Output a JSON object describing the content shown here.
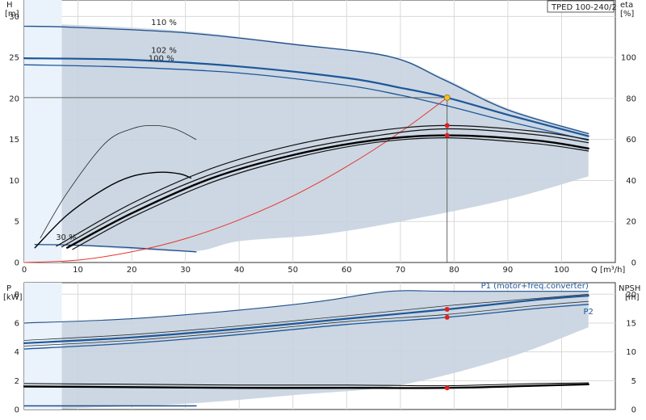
{
  "chart_data": [
    {
      "type": "line",
      "title": "TPED 100-240/2",
      "ylabel_left": "H",
      "ylabel_left_unit": "[m]",
      "ylabel_right": "eta",
      "ylabel_right_unit": "[%]",
      "xlabel": "Q [m³/h]",
      "xlim": [
        0,
        110
      ],
      "ylim_left": [
        0,
        32
      ],
      "ylim_right": [
        0,
        128
      ],
      "xticks": [
        0,
        10,
        20,
        30,
        40,
        50,
        60,
        70,
        80,
        90,
        100
      ],
      "yticks_left": [
        0,
        5,
        10,
        15,
        20,
        25,
        30
      ],
      "yticks_right": [
        0,
        20,
        40,
        60,
        80,
        100
      ],
      "grid": true,
      "curve_labels": [
        {
          "text": "110 %",
          "x": 26,
          "y": 29.3
        },
        {
          "text": "102 %",
          "x": 26,
          "y": 25.9
        },
        {
          "text": "100 %",
          "x": 25.5,
          "y": 24.9
        },
        {
          "text": "30 %",
          "x": 7.8,
          "y": 3.1
        }
      ],
      "duty_point": {
        "x": 78.7,
        "y": 20.1,
        "color": "#f2c032"
      },
      "duty_markers": [
        {
          "x": 78.7,
          "y": 16.7
        },
        {
          "x": 78.7,
          "y": 15.5
        }
      ],
      "envelope": {
        "top": [
          [
            2,
            29
          ],
          [
            8,
            29
          ],
          [
            30,
            28.2
          ],
          [
            50,
            26.7
          ],
          [
            68,
            25.2
          ],
          [
            78,
            22.5
          ],
          [
            90,
            18.8
          ],
          [
            105,
            15.8
          ]
        ],
        "bottom": [
          [
            105,
            10.5
          ],
          [
            90,
            7.7
          ],
          [
            70,
            5.0
          ],
          [
            55,
            3.4
          ],
          [
            40,
            2.6
          ],
          [
            32,
            1.4
          ],
          [
            20,
            1.6
          ],
          [
            8,
            2.2
          ],
          [
            2,
            2.2
          ]
        ]
      },
      "series": [
        {
          "role": "head_max",
          "values": [
            [
              0,
              28.8
            ],
            [
              8,
              28.7
            ],
            [
              30,
              28.0
            ],
            [
              50,
              26.6
            ],
            [
              68,
              25.1
            ],
            [
              78,
              22.3
            ],
            [
              90,
              18.6
            ],
            [
              105,
              15.7
            ]
          ],
          "color": "#1f4f8a",
          "width": 1.3
        },
        {
          "role": "head_102",
          "values": [
            [
              0,
              24.9
            ],
            [
              20,
              24.7
            ],
            [
              40,
              23.9
            ],
            [
              60,
              22.5
            ],
            [
              70,
              21.3
            ],
            [
              78.7,
              20.1
            ],
            [
              90,
              18.0
            ],
            [
              105,
              15.4
            ]
          ],
          "color": "#1c5799",
          "width": 2.2
        },
        {
          "role": "head_100",
          "values": [
            [
              0,
              24.1
            ],
            [
              20,
              23.8
            ],
            [
              40,
              23.1
            ],
            [
              60,
              21.6
            ],
            [
              70,
              20.4
            ],
            [
              78.7,
              19.1
            ],
            [
              90,
              17.2
            ],
            [
              105,
              14.9
            ]
          ],
          "color": "#1c5799",
          "width": 1.3
        },
        {
          "role": "head_min",
          "values": [
            [
              2,
              2.2
            ],
            [
              10,
              2.1
            ],
            [
              20,
              1.8
            ],
            [
              32,
              1.3
            ]
          ],
          "color": "#1f4f8a",
          "width": 1.3
        },
        {
          "role": "system_curve",
          "values": [
            [
              0,
              0
            ],
            [
              10,
              0.3
            ],
            [
              20,
              1.3
            ],
            [
              30,
              2.9
            ],
            [
              40,
              5.2
            ],
            [
              50,
              8.1
            ],
            [
              60,
              11.7
            ],
            [
              70,
              15.9
            ],
            [
              78.7,
              20.1
            ]
          ],
          "color": "#e8352d",
          "width": 1.0
        },
        {
          "role": "eta_1",
          "values": [
            [
              3,
              3
            ],
            [
              8,
              8.5
            ],
            [
              15,
              14.5
            ],
            [
              20,
              16.3
            ],
            [
              24,
              16.7
            ],
            [
              28,
              16.3
            ],
            [
              32,
              15
            ]
          ],
          "color": "#222222",
          "width": 0.8
        },
        {
          "role": "eta_2",
          "values": [
            [
              2,
              1.8
            ],
            [
              8,
              5.8
            ],
            [
              15,
              9.0
            ],
            [
              20,
              10.5
            ],
            [
              25,
              11
            ],
            [
              29,
              10.8
            ],
            [
              31,
              10.3
            ]
          ],
          "color": "#000000",
          "width": 1.4
        },
        {
          "role": "eta_3",
          "values": [
            [
              6,
              2.0
            ],
            [
              20,
              7.2
            ],
            [
              35,
              11.5
            ],
            [
              50,
              14.3
            ],
            [
              65,
              16.0
            ],
            [
              78.7,
              16.7
            ],
            [
              95,
              16.0
            ],
            [
              105,
              15.0
            ]
          ],
          "color": "#111111",
          "width": 1.2
        },
        {
          "role": "eta_4",
          "values": [
            [
              7,
              1.9
            ],
            [
              20,
              6.6
            ],
            [
              35,
              10.8
            ],
            [
              50,
              13.6
            ],
            [
              65,
              15.4
            ],
            [
              78.7,
              16.3
            ],
            [
              95,
              15.6
            ],
            [
              105,
              14.6
            ]
          ],
          "color": "#111111",
          "width": 1.2
        },
        {
          "role": "eta_5",
          "values": [
            [
              8,
              1.8
            ],
            [
              20,
              6.0
            ],
            [
              35,
              10.3
            ],
            [
              50,
              13.1
            ],
            [
              65,
              14.9
            ],
            [
              78.7,
              15.5
            ],
            [
              95,
              14.9
            ],
            [
              105,
              13.9
            ]
          ],
          "color": "#000000",
          "width": 2.4
        },
        {
          "role": "eta_6",
          "values": [
            [
              9,
              1.6
            ],
            [
              20,
              5.5
            ],
            [
              35,
              9.8
            ],
            [
              50,
              12.7
            ],
            [
              65,
              14.6
            ],
            [
              78.7,
              15.2
            ],
            [
              95,
              14.5
            ],
            [
              105,
              13.6
            ]
          ],
          "color": "#111111",
          "width": 1.2
        }
      ]
    },
    {
      "type": "line",
      "ylabel_left": "P",
      "ylabel_left_unit": "[kW]",
      "ylabel_right": "NPSH",
      "ylabel_right_unit": "[m]",
      "xlim": [
        0,
        110
      ],
      "ylim_left": [
        0,
        8.8
      ],
      "ylim_right": [
        0,
        22
      ],
      "yticks_left": [
        0,
        2,
        4,
        6,
        8
      ],
      "yticks_right": [
        0,
        5,
        10,
        15,
        20
      ],
      "grid": true,
      "legend_entries": [
        {
          "text": "P1 (motor+freq.converter)",
          "color": "#1c5799",
          "x": 95,
          "y": 8.6
        },
        {
          "text": "P2",
          "color": "#1c5799",
          "x": 105,
          "y": 6.8
        }
      ],
      "duty_markers": [
        {
          "x": 78.7,
          "y": 6.95
        },
        {
          "x": 78.7,
          "y": 6.4
        },
        {
          "x": 78.7,
          "y": 1.5
        }
      ],
      "envelope": {
        "top": [
          [
            2,
            6.0
          ],
          [
            20,
            6.3
          ],
          [
            40,
            6.9
          ],
          [
            55,
            7.5
          ],
          [
            68,
            8.2
          ],
          [
            80,
            8.2
          ],
          [
            105,
            8.2
          ]
        ],
        "bottom": [
          [
            105,
            5.7
          ],
          [
            90,
            3.6
          ],
          [
            70,
            1.7
          ],
          [
            50,
            1.0
          ],
          [
            30,
            0.4
          ],
          [
            10,
            0.1
          ],
          [
            2,
            0.0
          ]
        ]
      },
      "series": [
        {
          "role": "P1_max",
          "values": [
            [
              0,
              6.0
            ],
            [
              20,
              6.3
            ],
            [
              40,
              6.9
            ],
            [
              55,
              7.5
            ],
            [
              68,
              8.2
            ],
            [
              80,
              8.2
            ],
            [
              105,
              8.2
            ]
          ],
          "color": "#1f4f8a",
          "width": 1.1
        },
        {
          "role": "P1",
          "values": [
            [
              0,
              4.6
            ],
            [
              20,
              5.0
            ],
            [
              40,
              5.6
            ],
            [
              60,
              6.3
            ],
            [
              78.7,
              6.95
            ],
            [
              95,
              7.6
            ],
            [
              105,
              7.9
            ]
          ],
          "color": "#1c5799",
          "width": 2.2
        },
        {
          "role": "P1_b",
          "values": [
            [
              0,
              4.8
            ],
            [
              20,
              5.2
            ],
            [
              40,
              5.8
            ],
            [
              60,
              6.5
            ],
            [
              78.7,
              7.2
            ],
            [
              95,
              7.7
            ],
            [
              105,
              8.0
            ]
          ],
          "color": "#333333",
          "width": 0.8
        },
        {
          "role": "P2",
          "values": [
            [
              0,
              4.2
            ],
            [
              20,
              4.6
            ],
            [
              40,
              5.2
            ],
            [
              60,
              5.9
            ],
            [
              78.7,
              6.4
            ],
            [
              95,
              7.0
            ],
            [
              105,
              7.3
            ]
          ],
          "color": "#1c5799",
          "width": 1.3
        },
        {
          "role": "P2_b",
          "values": [
            [
              0,
              4.4
            ],
            [
              20,
              4.8
            ],
            [
              40,
              5.4
            ],
            [
              60,
              6.1
            ],
            [
              78.7,
              6.6
            ],
            [
              95,
              7.2
            ],
            [
              105,
              7.5
            ]
          ],
          "color": "#333333",
          "width": 0.8
        },
        {
          "role": "NPSH",
          "values": [
            [
              0,
              1.6
            ],
            [
              20,
              1.55
            ],
            [
              40,
              1.5
            ],
            [
              60,
              1.5
            ],
            [
              78.7,
              1.5
            ],
            [
              95,
              1.65
            ],
            [
              105,
              1.75
            ]
          ],
          "color": "#000000",
          "width": 2.4
        },
        {
          "role": "NPSH_b",
          "values": [
            [
              0,
              1.8
            ],
            [
              20,
              1.75
            ],
            [
              40,
              1.7
            ],
            [
              60,
              1.7
            ],
            [
              78.7,
              1.65
            ],
            [
              95,
              1.8
            ],
            [
              105,
              1.85
            ]
          ],
          "color": "#000000",
          "width": 1.0
        },
        {
          "role": "P_low",
          "values": [
            [
              0,
              0.25
            ],
            [
              32,
              0.25
            ]
          ],
          "color": "#1f4f8a",
          "width": 1.6
        }
      ]
    }
  ]
}
